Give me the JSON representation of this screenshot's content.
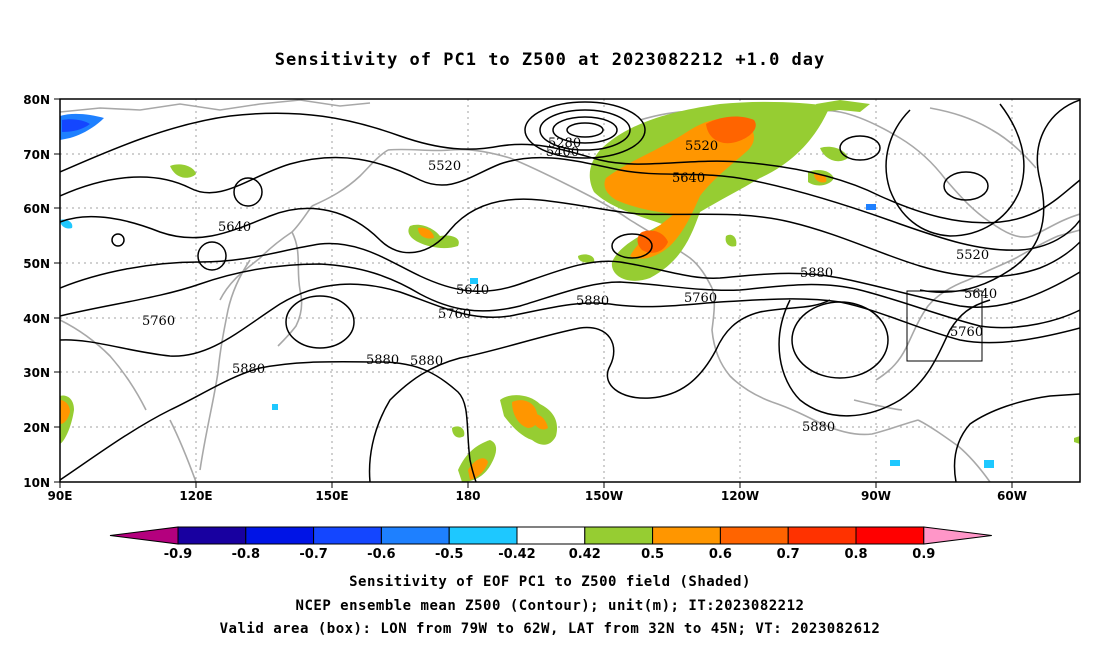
{
  "title": "Sensitivity of PC1 to Z500 at 2023082212 +1.0 day",
  "axes": {
    "lat_labels": [
      "80N",
      "70N",
      "60N",
      "50N",
      "40N",
      "30N",
      "20N",
      "10N"
    ],
    "lon_labels": [
      "90E",
      "120E",
      "150E",
      "180",
      "150W",
      "120W",
      "90W",
      "60W"
    ]
  },
  "contour_labels": [
    "5280",
    "5400",
    "5520",
    "5520",
    "5520",
    "5640",
    "5640",
    "5640",
    "5640",
    "5760",
    "5760",
    "5760",
    "5760",
    "5880",
    "5880",
    "5880",
    "5880",
    "5880",
    "5880"
  ],
  "colorbar": {
    "labels": [
      "-0.9",
      "-0.8",
      "-0.7",
      "-0.6",
      "-0.5",
      "-0.42",
      "0.42",
      "0.5",
      "0.6",
      "0.7",
      "0.8",
      "0.9"
    ],
    "colors": [
      "#b4007e",
      "#1800a0",
      "#0014e6",
      "#1446ff",
      "#1e80ff",
      "#1ec8ff",
      "#ffffff",
      "#96cd32",
      "#ff9600",
      "#ff6400",
      "#ff3200",
      "#ff0000",
      "#ff96c8"
    ]
  },
  "captions": {
    "line1": "Sensitivity of EOF PC1 to Z500 field (Shaded)",
    "line2": "NCEP ensemble mean Z500 (Contour); unit(m); IT:2023082212",
    "line3": "Valid area (box): LON from 79W to 62W, LAT from 32N to 45N; VT: 2023082612"
  },
  "map_colors": {
    "coast": "#a8a8a8",
    "contour": "#000000",
    "grid": "#a0a0a0"
  }
}
